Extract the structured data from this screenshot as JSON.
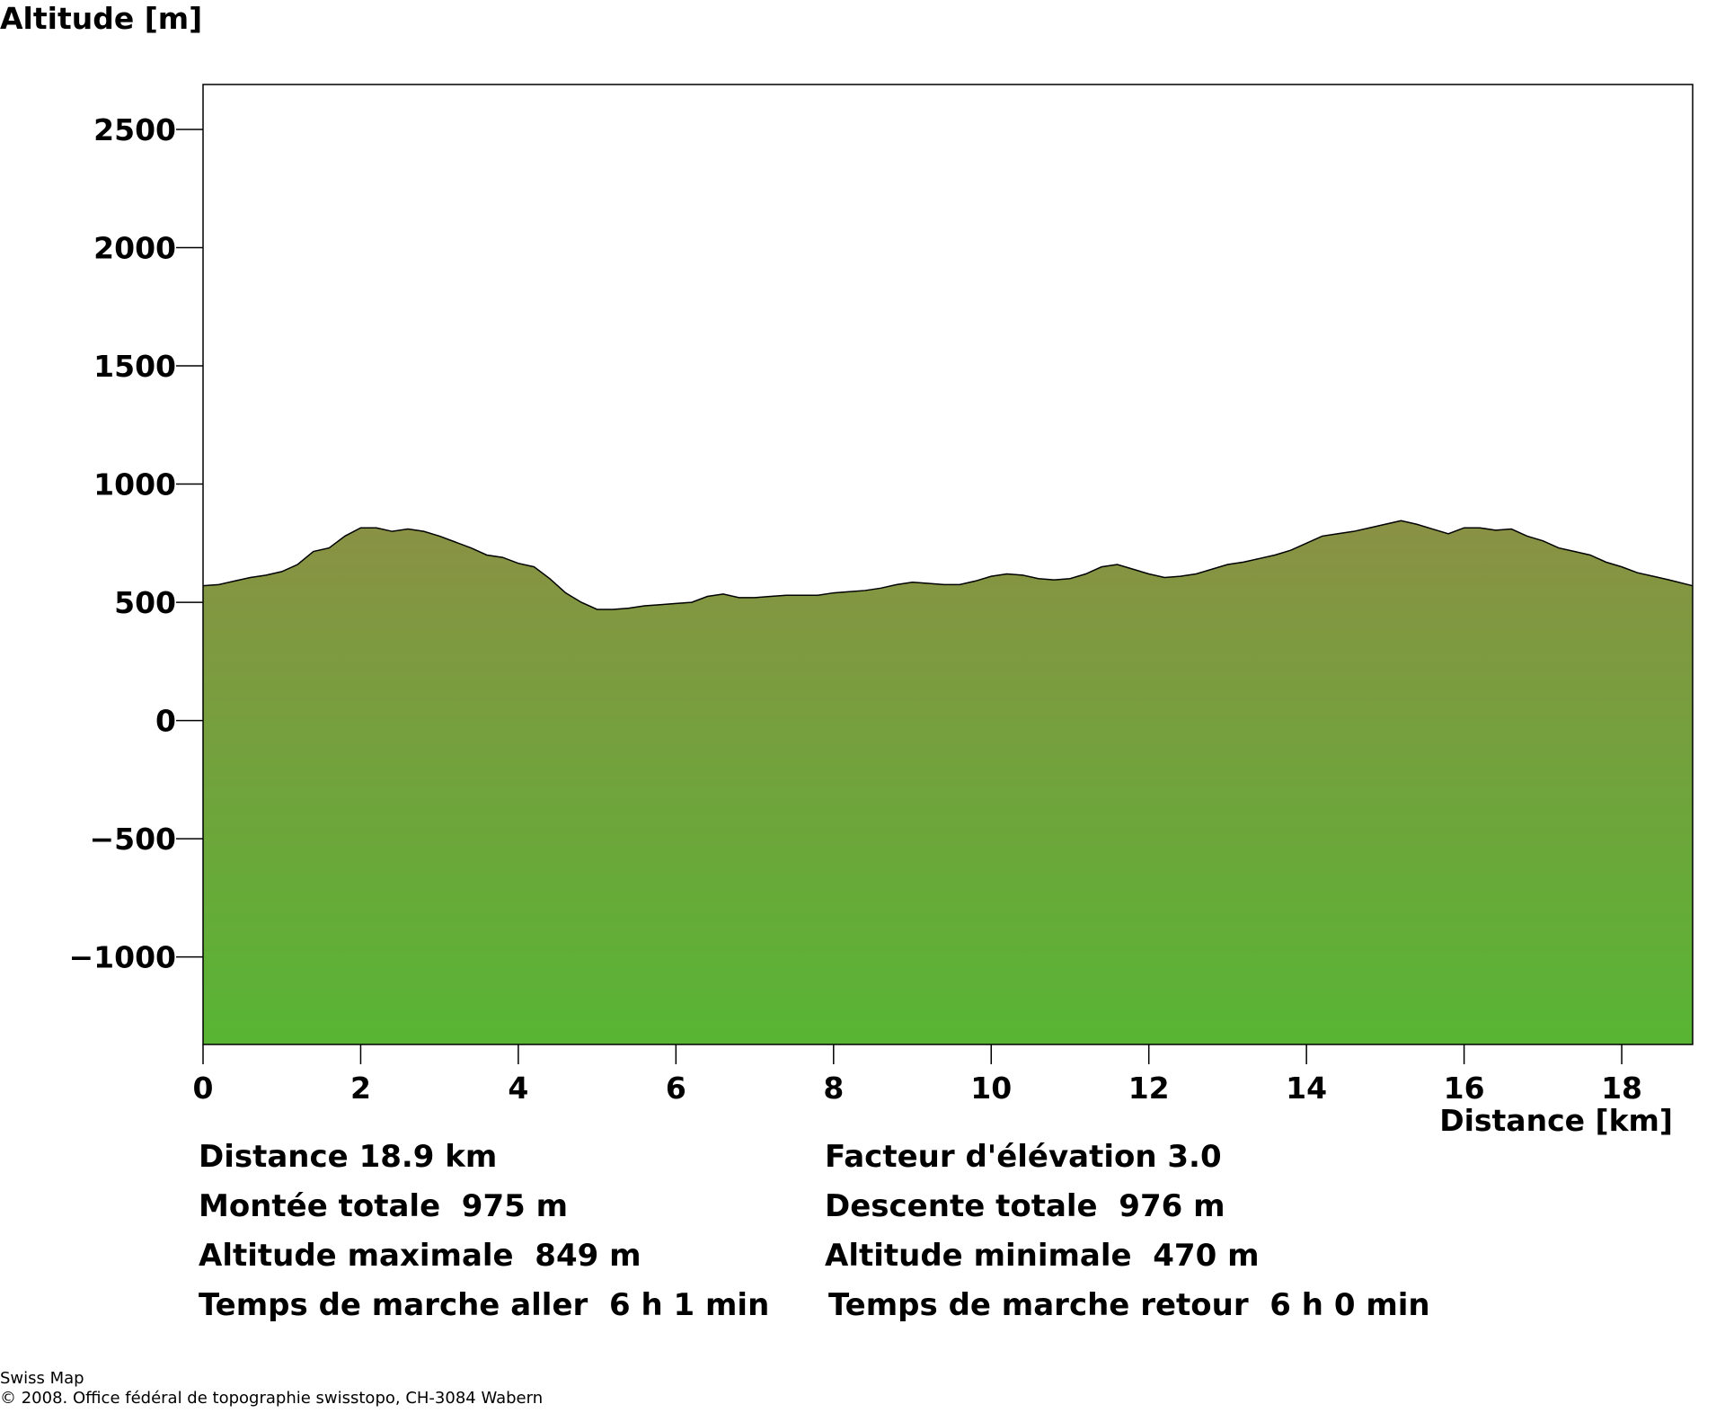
{
  "chart_data": {
    "type": "area",
    "ylabel": "Altitude [m]",
    "xlabel": "Distance [km]",
    "xlim": [
      0,
      18.9
    ],
    "ylim": [
      -1370,
      2690
    ],
    "x_ticks": [
      0,
      2,
      4,
      6,
      8,
      10,
      12,
      14,
      16,
      18
    ],
    "y_ticks": [
      2500,
      2000,
      1500,
      1000,
      500,
      0,
      -500,
      -1000
    ],
    "y_tick_labels": [
      "2500",
      "2000",
      "1500",
      "1000",
      "500",
      "0",
      "−500",
      "−1000"
    ],
    "x_tick_labels": [
      "0",
      "2",
      "4",
      "6",
      "8",
      "10",
      "12",
      "14",
      "16",
      "18"
    ],
    "grid": false,
    "colors": {
      "fill_top": "#8a9144",
      "fill_bottom": "#58b534",
      "outline": "#000000"
    },
    "x": [
      0,
      0.2,
      0.4,
      0.6,
      0.8,
      1.0,
      1.2,
      1.4,
      1.6,
      1.8,
      2.0,
      2.2,
      2.4,
      2.6,
      2.8,
      3.0,
      3.2,
      3.4,
      3.6,
      3.8,
      4.0,
      4.2,
      4.4,
      4.6,
      4.8,
      5.0,
      5.2,
      5.4,
      5.6,
      5.8,
      6.0,
      6.2,
      6.4,
      6.6,
      6.8,
      7.0,
      7.2,
      7.4,
      7.6,
      7.8,
      8.0,
      8.2,
      8.4,
      8.6,
      8.8,
      9.0,
      9.2,
      9.4,
      9.6,
      9.8,
      10.0,
      10.2,
      10.4,
      10.6,
      10.8,
      11.0,
      11.2,
      11.4,
      11.6,
      11.8,
      12.0,
      12.2,
      12.4,
      12.6,
      12.8,
      13.0,
      13.2,
      13.4,
      13.6,
      13.8,
      14.0,
      14.2,
      14.4,
      14.6,
      14.8,
      15.0,
      15.2,
      15.4,
      15.6,
      15.8,
      16.0,
      16.2,
      16.4,
      16.6,
      16.8,
      17.0,
      17.2,
      17.4,
      17.6,
      17.8,
      18.0,
      18.2,
      18.4,
      18.6,
      18.9
    ],
    "y": [
      570,
      575,
      590,
      605,
      615,
      630,
      660,
      715,
      730,
      780,
      815,
      815,
      800,
      810,
      800,
      780,
      755,
      730,
      700,
      690,
      665,
      650,
      600,
      540,
      500,
      470,
      470,
      475,
      485,
      490,
      495,
      500,
      525,
      535,
      520,
      520,
      525,
      530,
      530,
      530,
      540,
      545,
      550,
      560,
      575,
      585,
      580,
      575,
      575,
      590,
      610,
      620,
      615,
      600,
      595,
      600,
      620,
      650,
      660,
      640,
      620,
      605,
      610,
      620,
      640,
      660,
      670,
      685,
      700,
      720,
      750,
      780,
      790,
      800,
      815,
      830,
      845,
      830,
      810,
      790,
      815,
      815,
      805,
      810,
      780,
      760,
      730,
      715,
      700,
      670,
      650,
      625,
      610,
      595,
      570
    ]
  },
  "stats": {
    "left": [
      "Distance 18.9 km",
      "Montée totale  975 m",
      "Altitude maximale  849 m",
      "Temps de marche aller  6 h 1 min"
    ],
    "right": [
      "Facteur d'élévation 3.0",
      "Descente totale  976 m",
      "Altitude minimale  470 m",
      "Temps de marche retour  6 h 0 min"
    ]
  },
  "credits": {
    "line1": "Swiss Map",
    "line2": "© 2008. Office fédéral de topographie swisstopo, CH-3084 Wabern"
  }
}
